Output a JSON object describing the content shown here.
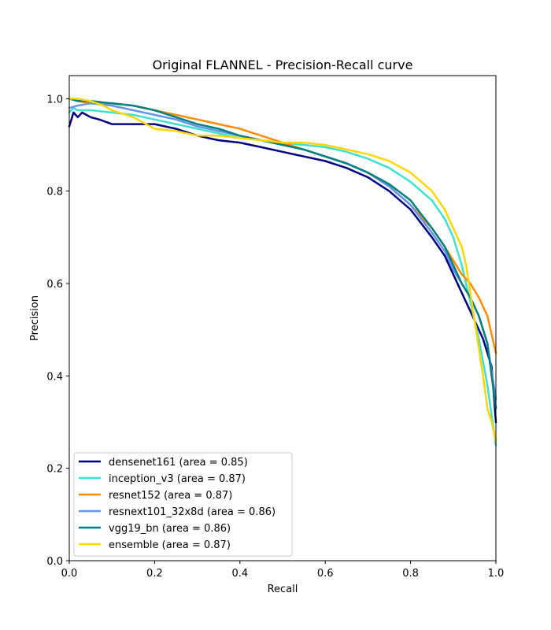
{
  "chart_data": {
    "type": "line",
    "title": "Original FLANNEL - Precision-Recall curve",
    "xlabel": "Recall",
    "ylabel": "Precision",
    "xlim": [
      0,
      1
    ],
    "ylim": [
      0,
      1.05
    ],
    "xticks": [
      "0.0",
      "0.2",
      "0.4",
      "0.6",
      "0.8",
      "1.0"
    ],
    "yticks": [
      "0.0",
      "0.2",
      "0.4",
      "0.6",
      "0.8",
      "1.0"
    ],
    "grid": false,
    "legend_position": "lower-left",
    "series": [
      {
        "name": "densenet161 (area = 0.85)",
        "color": "#000080",
        "x": [
          0.0,
          0.01,
          0.02,
          0.03,
          0.05,
          0.07,
          0.1,
          0.15,
          0.2,
          0.25,
          0.3,
          0.35,
          0.4,
          0.45,
          0.5,
          0.55,
          0.6,
          0.65,
          0.7,
          0.75,
          0.8,
          0.85,
          0.88,
          0.9,
          0.92,
          0.93,
          0.95,
          0.97,
          0.99,
          1.0
        ],
        "y": [
          0.94,
          0.97,
          0.96,
          0.97,
          0.96,
          0.955,
          0.945,
          0.945,
          0.945,
          0.935,
          0.92,
          0.91,
          0.905,
          0.895,
          0.885,
          0.875,
          0.865,
          0.85,
          0.83,
          0.8,
          0.76,
          0.7,
          0.66,
          0.62,
          0.58,
          0.56,
          0.52,
          0.48,
          0.42,
          0.3
        ]
      },
      {
        "name": "inception_v3 (area = 0.87)",
        "color": "#40E0D0",
        "x": [
          0.0,
          0.01,
          0.02,
          0.05,
          0.1,
          0.15,
          0.2,
          0.25,
          0.3,
          0.35,
          0.4,
          0.45,
          0.5,
          0.55,
          0.6,
          0.65,
          0.7,
          0.75,
          0.8,
          0.85,
          0.88,
          0.9,
          0.92,
          0.94,
          0.96,
          0.98,
          1.0
        ],
        "y": [
          0.97,
          0.98,
          0.975,
          0.975,
          0.97,
          0.965,
          0.955,
          0.945,
          0.935,
          0.925,
          0.915,
          0.91,
          0.905,
          0.9,
          0.895,
          0.885,
          0.87,
          0.85,
          0.82,
          0.78,
          0.74,
          0.7,
          0.64,
          0.56,
          0.48,
          0.38,
          0.25
        ]
      },
      {
        "name": "resnet152 (area = 0.87)",
        "color": "#FF8C00",
        "x": [
          0.0,
          0.02,
          0.05,
          0.1,
          0.15,
          0.2,
          0.25,
          0.3,
          0.35,
          0.4,
          0.45,
          0.5,
          0.55,
          0.6,
          0.65,
          0.7,
          0.75,
          0.8,
          0.85,
          0.88,
          0.9,
          0.92,
          0.94,
          0.96,
          0.98,
          1.0
        ],
        "y": [
          1.0,
          0.995,
          0.99,
          0.99,
          0.985,
          0.975,
          0.965,
          0.955,
          0.945,
          0.935,
          0.92,
          0.905,
          0.89,
          0.875,
          0.86,
          0.84,
          0.81,
          0.77,
          0.72,
          0.68,
          0.65,
          0.62,
          0.6,
          0.57,
          0.53,
          0.45
        ]
      },
      {
        "name": "resnext101_32x8d (area = 0.86)",
        "color": "#6495ED",
        "x": [
          0.0,
          0.02,
          0.05,
          0.1,
          0.15,
          0.2,
          0.25,
          0.3,
          0.35,
          0.4,
          0.45,
          0.5,
          0.55,
          0.6,
          0.65,
          0.7,
          0.75,
          0.8,
          0.85,
          0.88,
          0.9,
          0.92,
          0.94,
          0.96,
          0.98,
          1.0
        ],
        "y": [
          0.98,
          0.985,
          0.99,
          0.985,
          0.975,
          0.965,
          0.955,
          0.94,
          0.93,
          0.92,
          0.91,
          0.9,
          0.89,
          0.875,
          0.86,
          0.84,
          0.81,
          0.77,
          0.71,
          0.67,
          0.63,
          0.6,
          0.57,
          0.53,
          0.47,
          0.35
        ]
      },
      {
        "name": "vgg19_bn (area = 0.86)",
        "color": "#008080",
        "x": [
          0.0,
          0.02,
          0.05,
          0.1,
          0.15,
          0.2,
          0.25,
          0.3,
          0.35,
          0.4,
          0.45,
          0.5,
          0.55,
          0.6,
          0.65,
          0.7,
          0.75,
          0.8,
          0.85,
          0.88,
          0.9,
          0.92,
          0.94,
          0.96,
          0.98,
          1.0
        ],
        "y": [
          1.0,
          0.995,
          0.995,
          0.99,
          0.985,
          0.975,
          0.96,
          0.945,
          0.935,
          0.92,
          0.91,
          0.9,
          0.89,
          0.875,
          0.86,
          0.84,
          0.815,
          0.78,
          0.72,
          0.68,
          0.64,
          0.6,
          0.57,
          0.53,
          0.47,
          0.33
        ]
      },
      {
        "name": "ensemble (area = 0.87)",
        "color": "#FFD700",
        "x": [
          0.0,
          0.02,
          0.05,
          0.08,
          0.1,
          0.15,
          0.2,
          0.25,
          0.3,
          0.35,
          0.4,
          0.45,
          0.5,
          0.55,
          0.6,
          0.65,
          0.7,
          0.75,
          0.8,
          0.85,
          0.88,
          0.9,
          0.92,
          0.93,
          0.94,
          0.95,
          0.96,
          0.97,
          0.98,
          0.99,
          1.0
        ],
        "y": [
          1.0,
          1.0,
          0.995,
          0.985,
          0.975,
          0.96,
          0.935,
          0.93,
          0.92,
          0.92,
          0.915,
          0.91,
          0.905,
          0.905,
          0.9,
          0.89,
          0.88,
          0.865,
          0.84,
          0.8,
          0.76,
          0.72,
          0.68,
          0.64,
          0.58,
          0.52,
          0.46,
          0.4,
          0.33,
          0.3,
          0.26
        ]
      }
    ]
  }
}
